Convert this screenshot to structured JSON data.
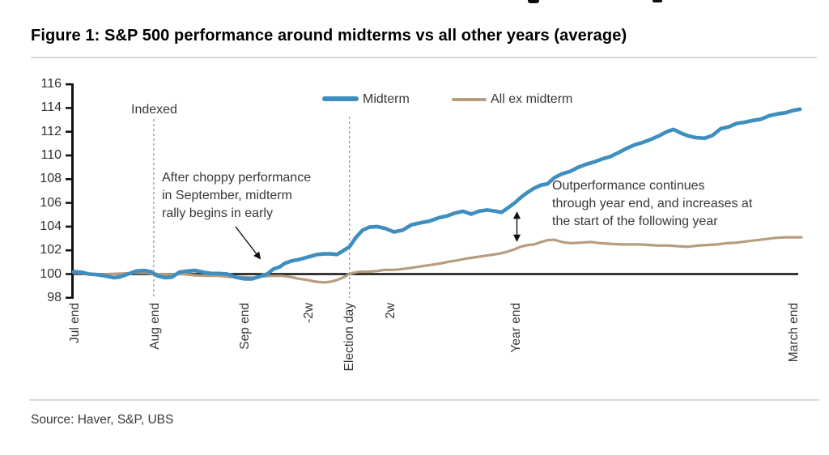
{
  "page": {
    "source": "Source: Haver, S&P, UBS"
  },
  "chart_data": {
    "type": "line",
    "title": "Figure 1: S&P 500 performance around midterms vs all other years (average)",
    "xlabel": "",
    "ylabel": "",
    "ylim": [
      98,
      116
    ],
    "y_ticks": [
      98,
      100,
      102,
      104,
      106,
      108,
      110,
      112,
      114,
      116
    ],
    "reference_line": 100,
    "grid": false,
    "legend_position": "top-center",
    "x_ticks": [
      {
        "label": "Jul end",
        "pos": 0.2
      },
      {
        "label": "Aug end",
        "pos": 11.2
      },
      {
        "label": "Sep end",
        "pos": 23.6
      },
      {
        "label": "-2w",
        "pos": 32.4
      },
      {
        "label": "Election day",
        "pos": 37.9
      },
      {
        "label": "2w",
        "pos": 43.6
      },
      {
        "label": "Year end",
        "pos": 60.8
      },
      {
        "label": "March end",
        "pos": 99.0
      }
    ],
    "dashed_vlines": [
      11.0,
      37.9
    ],
    "annotations": {
      "indexed": "Indexed",
      "rally": "After choppy performance\nin September, midterm\nrally begins in early",
      "outperf": "Outperformance continues\nthrough year end, and increases at\nthe start of the following year"
    },
    "series": [
      {
        "name": "Midterm",
        "color": "#3E8EC0",
        "points": [
          [
            0,
            100.2
          ],
          [
            1,
            100.15
          ],
          [
            2.1,
            100
          ],
          [
            3.2,
            99.95
          ],
          [
            4.3,
            99.85
          ],
          [
            5.5,
            99.7
          ],
          [
            6.3,
            99.75
          ],
          [
            7.5,
            100
          ],
          [
            8.6,
            100.25
          ],
          [
            9.7,
            100.3
          ],
          [
            10.6,
            100.2
          ],
          [
            11.5,
            99.85
          ],
          [
            12.5,
            99.7
          ],
          [
            13.5,
            99.75
          ],
          [
            14.5,
            100.15
          ],
          [
            15.6,
            100.25
          ],
          [
            16.7,
            100.3
          ],
          [
            17.8,
            100.15
          ],
          [
            18.9,
            100.05
          ],
          [
            20,
            100.05
          ],
          [
            21.1,
            100
          ],
          [
            22.2,
            99.75
          ],
          [
            23.4,
            99.6
          ],
          [
            24.5,
            99.6
          ],
          [
            25.6,
            99.8
          ],
          [
            26.6,
            100
          ],
          [
            27.4,
            100.4
          ],
          [
            28.3,
            100.6
          ],
          [
            29,
            100.9
          ],
          [
            29.9,
            101.1
          ],
          [
            30.8,
            101.2
          ],
          [
            31.7,
            101.35
          ],
          [
            32.6,
            101.5
          ],
          [
            33.5,
            101.65
          ],
          [
            34.4,
            101.7
          ],
          [
            35.3,
            101.7
          ],
          [
            36.2,
            101.65
          ],
          [
            37,
            101.95
          ],
          [
            37.9,
            102.3
          ],
          [
            38.8,
            103.1
          ],
          [
            39.7,
            103.7
          ],
          [
            40.6,
            103.95
          ],
          [
            41.7,
            104
          ],
          [
            42.8,
            103.85
          ],
          [
            44,
            103.55
          ],
          [
            45.2,
            103.7
          ],
          [
            46.4,
            104.15
          ],
          [
            47.5,
            104.3
          ],
          [
            48.8,
            104.45
          ],
          [
            50.2,
            104.75
          ],
          [
            51.3,
            104.9
          ],
          [
            52.4,
            105.15
          ],
          [
            53.5,
            105.3
          ],
          [
            54.6,
            105.05
          ],
          [
            55.7,
            105.3
          ],
          [
            56.8,
            105.4
          ],
          [
            58,
            105.3
          ],
          [
            58.8,
            105.2
          ],
          [
            59.7,
            105.6
          ],
          [
            60.6,
            106
          ],
          [
            61.5,
            106.5
          ],
          [
            62.4,
            106.9
          ],
          [
            63.3,
            107.25
          ],
          [
            64.2,
            107.5
          ],
          [
            65.1,
            107.6
          ],
          [
            66,
            108.1
          ],
          [
            67.1,
            108.45
          ],
          [
            68.2,
            108.65
          ],
          [
            69.3,
            109
          ],
          [
            70.4,
            109.25
          ],
          [
            71.5,
            109.45
          ],
          [
            72.6,
            109.7
          ],
          [
            73.7,
            109.9
          ],
          [
            74.9,
            110.25
          ],
          [
            76,
            110.6
          ],
          [
            77.1,
            110.9
          ],
          [
            78.2,
            111.1
          ],
          [
            79.3,
            111.35
          ],
          [
            80.4,
            111.65
          ],
          [
            81.5,
            112
          ],
          [
            82.4,
            112.2
          ],
          [
            83.4,
            111.9
          ],
          [
            84.4,
            111.65
          ],
          [
            85.5,
            111.5
          ],
          [
            86.7,
            111.45
          ],
          [
            87.8,
            111.7
          ],
          [
            88.9,
            112.25
          ],
          [
            90,
            112.4
          ],
          [
            91.1,
            112.7
          ],
          [
            92.2,
            112.8
          ],
          [
            93.3,
            112.95
          ],
          [
            94.4,
            113.05
          ],
          [
            95.6,
            113.35
          ],
          [
            96.7,
            113.5
          ],
          [
            97.8,
            113.6
          ],
          [
            98.9,
            113.8
          ],
          [
            99.8,
            113.9
          ]
        ]
      },
      {
        "name": "All ex midterm",
        "color": "#B79C7F",
        "points": [
          [
            0,
            100.1
          ],
          [
            1.6,
            100.05
          ],
          [
            3.2,
            99.95
          ],
          [
            4.9,
            100
          ],
          [
            6.6,
            100.05
          ],
          [
            8.2,
            100.1
          ],
          [
            9.9,
            100.1
          ],
          [
            11.6,
            100
          ],
          [
            13.2,
            99.95
          ],
          [
            14.9,
            100
          ],
          [
            16.6,
            99.9
          ],
          [
            18.2,
            99.85
          ],
          [
            19.9,
            99.85
          ],
          [
            21.6,
            99.75
          ],
          [
            23.2,
            99.75
          ],
          [
            24.6,
            99.7
          ],
          [
            25.9,
            99.8
          ],
          [
            27.3,
            99.85
          ],
          [
            28.6,
            99.85
          ],
          [
            29.9,
            99.75
          ],
          [
            31,
            99.6
          ],
          [
            32.1,
            99.5
          ],
          [
            33.3,
            99.35
          ],
          [
            34.4,
            99.3
          ],
          [
            35.3,
            99.35
          ],
          [
            36.2,
            99.5
          ],
          [
            37,
            99.7
          ],
          [
            37.7,
            99.95
          ],
          [
            38.4,
            100.1
          ],
          [
            39.4,
            100.2
          ],
          [
            40.5,
            100.2
          ],
          [
            41.6,
            100.25
          ],
          [
            42.7,
            100.35
          ],
          [
            43.8,
            100.35
          ],
          [
            44.9,
            100.4
          ],
          [
            46.1,
            100.5
          ],
          [
            47.2,
            100.6
          ],
          [
            48.3,
            100.7
          ],
          [
            49.4,
            100.8
          ],
          [
            50.5,
            100.9
          ],
          [
            51.6,
            101.05
          ],
          [
            52.7,
            101.15
          ],
          [
            53.8,
            101.3
          ],
          [
            55,
            101.4
          ],
          [
            56.1,
            101.5
          ],
          [
            57.2,
            101.6
          ],
          [
            58.3,
            101.7
          ],
          [
            59.4,
            101.85
          ],
          [
            60.4,
            102.05
          ],
          [
            61.4,
            102.3
          ],
          [
            62.4,
            102.45
          ],
          [
            63.3,
            102.5
          ],
          [
            64.2,
            102.7
          ],
          [
            65.1,
            102.85
          ],
          [
            66,
            102.9
          ],
          [
            67.1,
            102.7
          ],
          [
            68.4,
            102.6
          ],
          [
            69.7,
            102.65
          ],
          [
            71.1,
            102.7
          ],
          [
            72.4,
            102.6
          ],
          [
            73.7,
            102.55
          ],
          [
            75.1,
            102.5
          ],
          [
            76.4,
            102.5
          ],
          [
            77.8,
            102.5
          ],
          [
            79.1,
            102.45
          ],
          [
            80.4,
            102.4
          ],
          [
            81.8,
            102.4
          ],
          [
            83.1,
            102.35
          ],
          [
            84.4,
            102.3
          ],
          [
            85.8,
            102.4
          ],
          [
            87.1,
            102.45
          ],
          [
            88.4,
            102.5
          ],
          [
            89.8,
            102.6
          ],
          [
            91.1,
            102.65
          ],
          [
            92.4,
            102.75
          ],
          [
            93.8,
            102.85
          ],
          [
            95.1,
            102.95
          ],
          [
            96.4,
            103.05
          ],
          [
            97.8,
            103.1
          ],
          [
            99.1,
            103.1
          ],
          [
            100,
            103.1
          ]
        ]
      }
    ]
  }
}
